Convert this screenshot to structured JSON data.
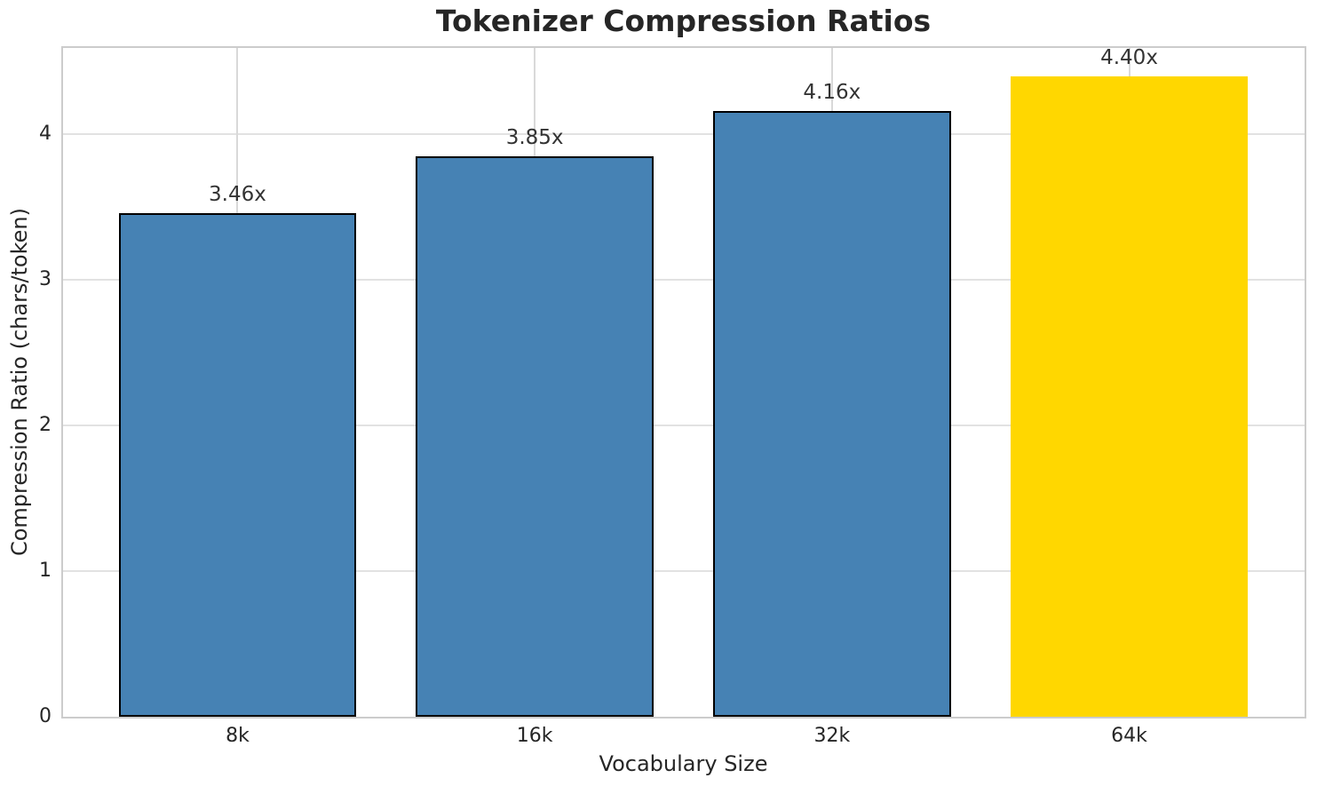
{
  "chart_data": {
    "type": "bar",
    "title": "Tokenizer Compression Ratios",
    "xlabel": "Vocabulary Size",
    "ylabel": "Compression Ratio (chars/token)",
    "categories": [
      "8k",
      "16k",
      "32k",
      "64k"
    ],
    "values": [
      3.46,
      3.85,
      4.16,
      4.4
    ],
    "value_labels": [
      "3.46x",
      "3.85x",
      "4.16x",
      "4.40x"
    ],
    "bar_colors": [
      "#4682B4",
      "#4682B4",
      "#4682B4",
      "#FFD700"
    ],
    "bar_edge_colors": [
      "#000000",
      "#000000",
      "#000000",
      "none"
    ],
    "highlight_category": "64k",
    "ylim": [
      0,
      4.6
    ],
    "ytick_values": [
      0,
      1,
      2,
      3,
      4
    ],
    "ytick_labels": [
      "0",
      "1",
      "2",
      "3",
      "4"
    ],
    "bar_width_fraction": 0.8,
    "grid": "on",
    "legend": "none"
  },
  "style": {
    "background_color": "#ffffff",
    "bar_color": "#4682B4",
    "highlight_color": "#FFD700",
    "bar_edge_color": "#000000",
    "grid_color": "#e2e2e2",
    "spine_color": "#cccccc",
    "text_color": "#262626"
  }
}
